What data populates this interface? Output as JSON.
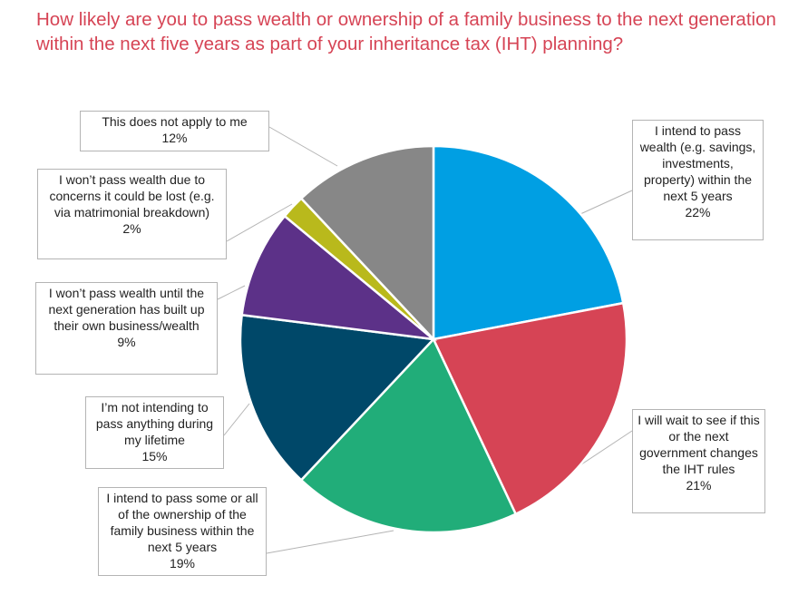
{
  "chart_data": {
    "type": "pie",
    "title": "How likely are you to pass wealth or ownership of a family business to the next generation within the next five years as part of your inheritance tax (IHT) planning?",
    "slices": [
      {
        "label": "I intend to pass wealth (e.g. savings, investments, property) within the next 5 years",
        "value": 22,
        "value_label": "22%",
        "color": "#009fe3"
      },
      {
        "label": "I will wait to see if this or the next government changes the IHT rules",
        "value": 21,
        "value_label": "21%",
        "color": "#d64455"
      },
      {
        "label": "I intend to pass some or all of the ownership of the family business within the next 5 years",
        "value": 19,
        "value_label": "19%",
        "color": "#21ad79"
      },
      {
        "label": "I’m not intending to pass anything during my lifetime",
        "value": 15,
        "value_label": "15%",
        "color": "#004869"
      },
      {
        "label": "I won’t pass wealth until the next generation has built up their own business/wealth",
        "value": 9,
        "value_label": "9%",
        "color": "#5c3188"
      },
      {
        "label": "I won’t pass wealth due to concerns it could be lost (e.g. via matrimonial breakdown)",
        "value": 2,
        "value_label": "2%",
        "color": "#b9b91c"
      },
      {
        "label": "This does not apply to me",
        "value": 12,
        "value_label": "12%",
        "color": "#878787"
      }
    ],
    "title_color": "#d64455"
  }
}
